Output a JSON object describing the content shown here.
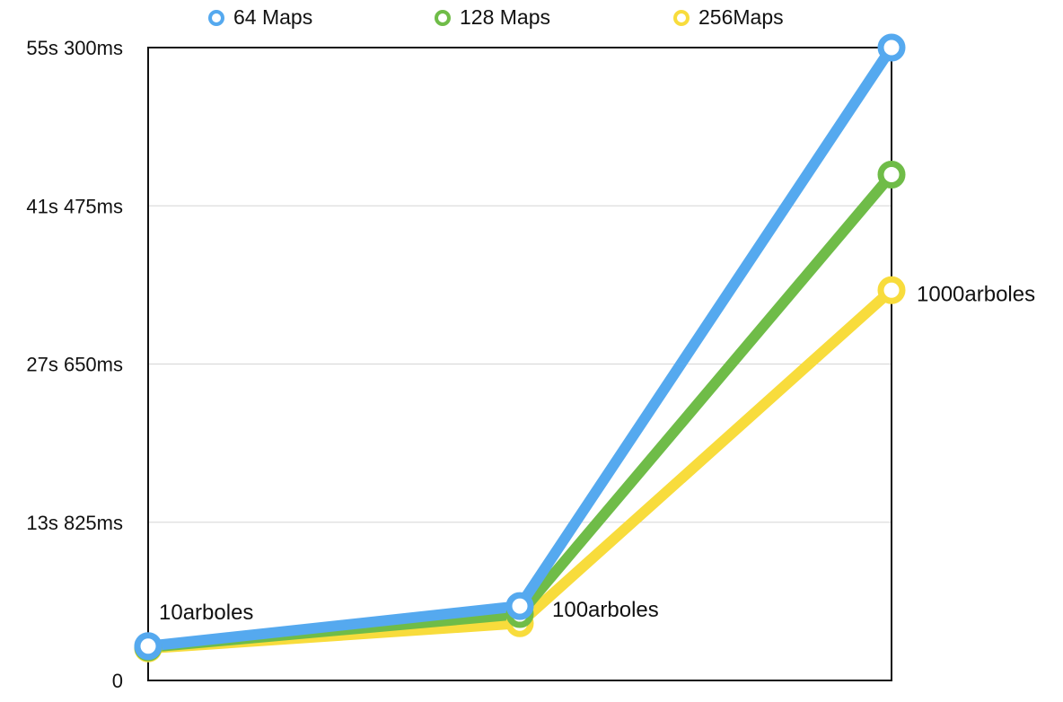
{
  "chart_data": {
    "type": "line",
    "title": "",
    "xlabel": "",
    "ylabel": "",
    "categories": [
      "10arboles",
      "100arboles",
      "1000arboles"
    ],
    "y_unit": "ms",
    "ylim": [
      0,
      55300
    ],
    "yticks": [
      {
        "value": 0,
        "label": "0"
      },
      {
        "value": 13825,
        "label": "13s 825ms"
      },
      {
        "value": 27650,
        "label": "27s 650ms"
      },
      {
        "value": 41475,
        "label": "41s 475ms"
      },
      {
        "value": 55300,
        "label": "55s 300ms"
      }
    ],
    "grid": true,
    "legend_position": "top",
    "series": [
      {
        "name": "64 Maps",
        "color": "#55a9ef",
        "values": [
          3000,
          6500,
          55300
        ]
      },
      {
        "name": "128 Maps",
        "color": "#6fbc48",
        "values": [
          2900,
          5800,
          44200
        ]
      },
      {
        "name": "256Maps",
        "color": "#f8dc3c",
        "values": [
          2800,
          5000,
          34100
        ]
      }
    ],
    "point_labels": [
      {
        "category_index": 0,
        "text": "10arboles"
      },
      {
        "category_index": 1,
        "text": "100arboles"
      },
      {
        "category_index": 2,
        "text": "1000arboles"
      }
    ]
  }
}
